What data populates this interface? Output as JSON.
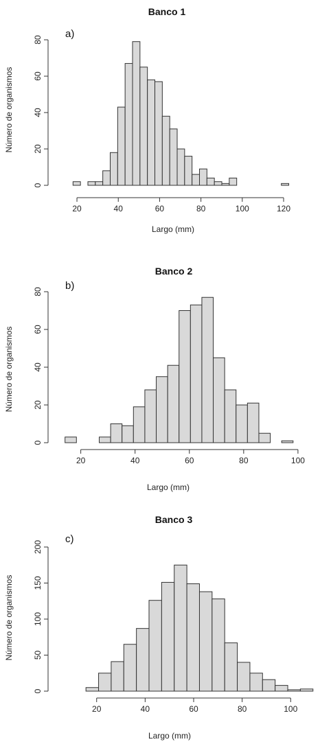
{
  "chart_data": [
    {
      "type": "bar",
      "title": "Banco 1",
      "panel_label": "a)",
      "xlabel": "Largo (mm)",
      "ylabel": "Número de organismos",
      "xlim": [
        15,
        120
      ],
      "ylim": [
        0,
        80
      ],
      "xticks": [
        20,
        40,
        60,
        80,
        100,
        120
      ],
      "yticks": [
        0,
        20,
        40,
        60,
        80
      ],
      "bin_width": 3.6,
      "x": [
        18.1,
        21.7,
        25.3,
        28.9,
        32.5,
        36.1,
        39.7,
        43.3,
        46.9,
        50.5,
        54.1,
        57.7,
        61.3,
        64.9,
        68.5,
        72.1,
        75.7,
        79.3,
        82.9,
        86.5,
        90.1,
        93.7,
        97.3,
        100.9,
        104.5,
        108.1,
        111.7,
        115.3,
        118.9
      ],
      "values": [
        2,
        0,
        2,
        2,
        8,
        18,
        43,
        67,
        79,
        65,
        58,
        57,
        38,
        31,
        20,
        16,
        6,
        9,
        4,
        2,
        1,
        4,
        0,
        0,
        0,
        0,
        0,
        0,
        1
      ]
    },
    {
      "type": "bar",
      "title": "Banco 2",
      "panel_label": "b)",
      "xlabel": "Largo (mm)",
      "ylabel": "Número de organismos",
      "xlim": [
        12,
        98
      ],
      "ylim": [
        0,
        80
      ],
      "xticks": [
        20,
        40,
        60,
        80,
        100
      ],
      "yticks": [
        0,
        20,
        40,
        60,
        80
      ],
      "bin_width": 4.2,
      "x": [
        14.2,
        18.4,
        22.6,
        26.8,
        31.0,
        35.2,
        39.4,
        43.6,
        47.8,
        52.0,
        56.2,
        60.4,
        64.6,
        68.8,
        73.0,
        77.2,
        81.4,
        85.6,
        89.8,
        94.0
      ],
      "values": [
        3,
        0,
        0,
        3,
        10,
        9,
        19,
        28,
        35,
        41,
        70,
        73,
        77,
        45,
        28,
        20,
        21,
        5,
        0,
        1
      ]
    },
    {
      "type": "bar",
      "title": "Banco 3",
      "panel_label": "c)",
      "xlabel": "Largo (mm)",
      "ylabel": "Número de organismos",
      "xlim": [
        13,
        107
      ],
      "ylim": [
        0,
        200
      ],
      "xticks": [
        20,
        40,
        60,
        80,
        100
      ],
      "yticks": [
        0,
        50,
        100,
        150,
        200
      ],
      "bin_width": 5.2,
      "x": [
        15.6,
        20.8,
        26.0,
        31.2,
        36.4,
        41.6,
        46.8,
        52.0,
        57.2,
        62.4,
        67.6,
        72.8,
        78.0,
        83.2,
        88.4,
        93.6,
        98.8,
        104.0
      ],
      "values": [
        5,
        25,
        41,
        65,
        87,
        126,
        151,
        175,
        149,
        138,
        128,
        67,
        40,
        25,
        16,
        8,
        2,
        3
      ]
    }
  ],
  "colors": {
    "bar_fill": "#d9d9d9",
    "bar_stroke": "#333333"
  }
}
